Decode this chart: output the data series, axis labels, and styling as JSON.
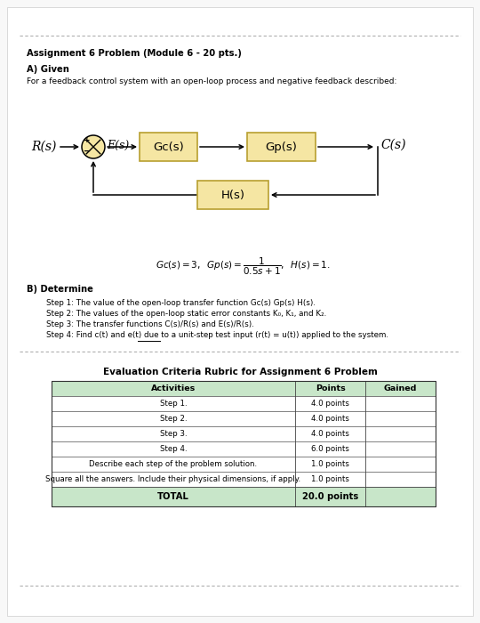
{
  "title": "Assignment 6 Problem (Module 6 - 20 pts.)",
  "section_a": "A) Given",
  "section_a_text": "For a feedback control system with an open-loop process and negative feedback described:",
  "section_b": "B) Determine",
  "section_b_steps": [
    "Step 1: The value of the open-loop transfer function Gc(s) Gp(s) H(s).",
    "Step 2: The values of the open-loop static error constants K₀, K₁, and K₂.",
    "Step 3: The transfer functions C(s)/R(s) and E(s)/R(s).",
    "Step 4: Find c(t) and e(t) due to a unit-step test input (r(t) = u(t)) applied to the system."
  ],
  "step4_underline_start": "Step 4: Find c(t) and e(t) due to a ",
  "step4_underline_word": "unit-step",
  "step4_underline_end": " test input (r(t) = u(t)) applied to the system.",
  "table_title": "Evaluation Criteria Rubric for Assignment 6 Problem",
  "table_header": [
    "Activities",
    "Points",
    "Gained"
  ],
  "table_rows": [
    [
      "Step 1.",
      "4.0 points",
      ""
    ],
    [
      "Step 2.",
      "4.0 points",
      ""
    ],
    [
      "Step 3.",
      "4.0 points",
      ""
    ],
    [
      "Step 4.",
      "6.0 points",
      ""
    ],
    [
      "Describe each step of the problem solution.",
      "1.0 points",
      ""
    ],
    [
      "Square all the answers. Include their physical dimensions, if apply.",
      "1.0 points",
      ""
    ]
  ],
  "table_total": [
    "TOTAL",
    "20.0 points",
    ""
  ],
  "box_fill": "#f5e6a3",
  "box_edge": "#b8a030",
  "header_fill": "#c8e6c9",
  "total_fill": "#c8e6c9",
  "dashed_line_color": "#999999",
  "bg_color": "#f8f8f8",
  "page_bg": "#ffffff",
  "shadow_color": "#cccccc"
}
